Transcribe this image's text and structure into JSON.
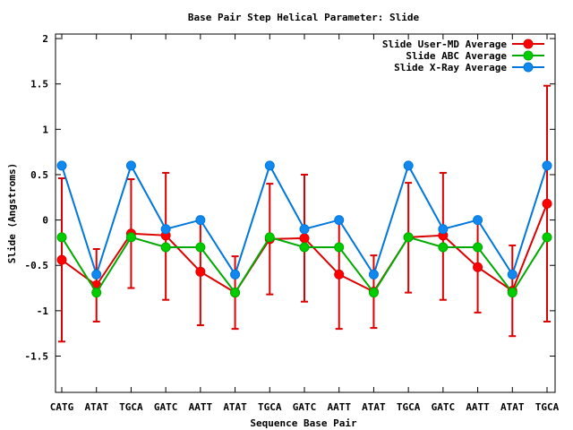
{
  "chart_data": {
    "type": "line",
    "title": "Base Pair Step Helical Parameter: Slide",
    "xlabel": "Sequence Base Pair",
    "ylabel": "Slide (Angstroms)",
    "ylim": [
      -1.9,
      2.05
    ],
    "yticks": [
      2,
      1.5,
      1,
      0.5,
      0,
      -0.5,
      -1,
      -1.5
    ],
    "ytick_labels": [
      "2",
      "1.5",
      "1",
      "0.5",
      "0",
      "-0.5",
      "-1",
      "-1.5"
    ],
    "categories": [
      "CATG",
      "ATAT",
      "TGCA",
      "GATC",
      "AATT",
      "ATAT",
      "TGCA",
      "GATC",
      "AATT",
      "ATAT",
      "TGCA",
      "GATC",
      "AATT",
      "ATAT",
      "TGCA"
    ],
    "legend_position": "top-right",
    "series": [
      {
        "name": "Slide User-MD Average",
        "color": "#dd0000",
        "marker_color": "#ff0000",
        "values": [
          -0.44,
          -0.72,
          -0.15,
          -0.17,
          -0.57,
          -0.8,
          -0.21,
          -0.2,
          -0.6,
          -0.79,
          -0.19,
          -0.17,
          -0.52,
          -0.78,
          0.18
        ],
        "err_low": [
          -1.34,
          -1.12,
          -0.75,
          -0.88,
          -1.16,
          -1.2,
          -0.82,
          -0.9,
          -1.2,
          -1.19,
          -0.8,
          -0.88,
          -1.02,
          -1.28,
          -1.12
        ],
        "err_high": [
          0.46,
          -0.32,
          0.45,
          0.52,
          0.02,
          -0.4,
          0.4,
          0.5,
          0.0,
          -0.39,
          0.41,
          0.52,
          -0.02,
          -0.28,
          1.48
        ]
      },
      {
        "name": "Slide ABC Average",
        "color": "#00aa00",
        "marker_color": "#00cc00",
        "values": [
          -0.19,
          -0.8,
          -0.19,
          -0.3,
          -0.3,
          -0.8,
          -0.19,
          -0.3,
          -0.3,
          -0.8,
          -0.19,
          -0.3,
          -0.3,
          -0.8,
          -0.19
        ]
      },
      {
        "name": "Slide X-Ray Average",
        "color": "#0077dd",
        "marker_color": "#1188ee",
        "values": [
          0.6,
          -0.6,
          0.6,
          -0.1,
          0.0,
          -0.6,
          0.6,
          -0.1,
          0.0,
          -0.6,
          0.6,
          -0.1,
          0.0,
          -0.6,
          0.6
        ]
      }
    ]
  }
}
